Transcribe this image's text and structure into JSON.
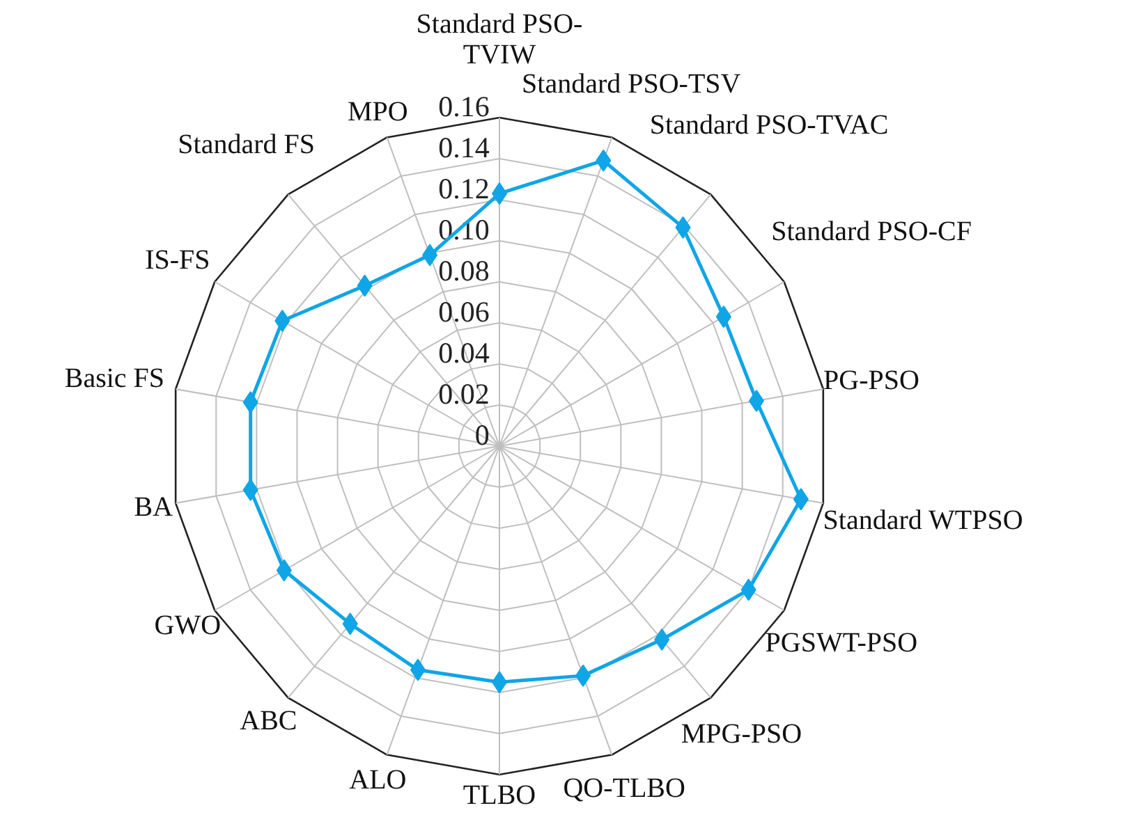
{
  "chart_data": {
    "type": "radar",
    "categories": [
      "Standard PSO-TVIW",
      "Standard PSO-TSV",
      "Standard PSO-TVAC",
      "Standard PSO-CF",
      "PG-PSO",
      "Standard WTPSO",
      "PGSWT-PSO",
      "MPG-PSO",
      "QO-TLBO",
      "TLBO",
      "ALO",
      "ABC",
      "GWO",
      "BA",
      "Basic FS",
      "IS-FS",
      "Standard FS",
      "MPO"
    ],
    "series": [
      {
        "color": "#10a5e6",
        "values": [
          0.123,
          0.148,
          0.139,
          0.126,
          0.127,
          0.149,
          0.14,
          0.123,
          0.119,
          0.115,
          0.116,
          0.113,
          0.121,
          0.123,
          0.123,
          0.122,
          0.102,
          0.099
        ]
      }
    ],
    "ylim": [
      0,
      0.16
    ],
    "yticks": [
      {
        "value": 0,
        "label": "0"
      },
      {
        "value": 0.02,
        "label": "0.02"
      },
      {
        "value": 0.04,
        "label": "0.04"
      },
      {
        "value": 0.06,
        "label": "0.06"
      },
      {
        "value": 0.08,
        "label": "0.08"
      },
      {
        "value": 0.1,
        "label": "0.10"
      },
      {
        "value": 0.12,
        "label": "0.12"
      },
      {
        "value": 0.14,
        "label": "0.14"
      },
      {
        "value": 0.16,
        "label": "0.16"
      }
    ],
    "grid": true,
    "marker": "diamond"
  }
}
